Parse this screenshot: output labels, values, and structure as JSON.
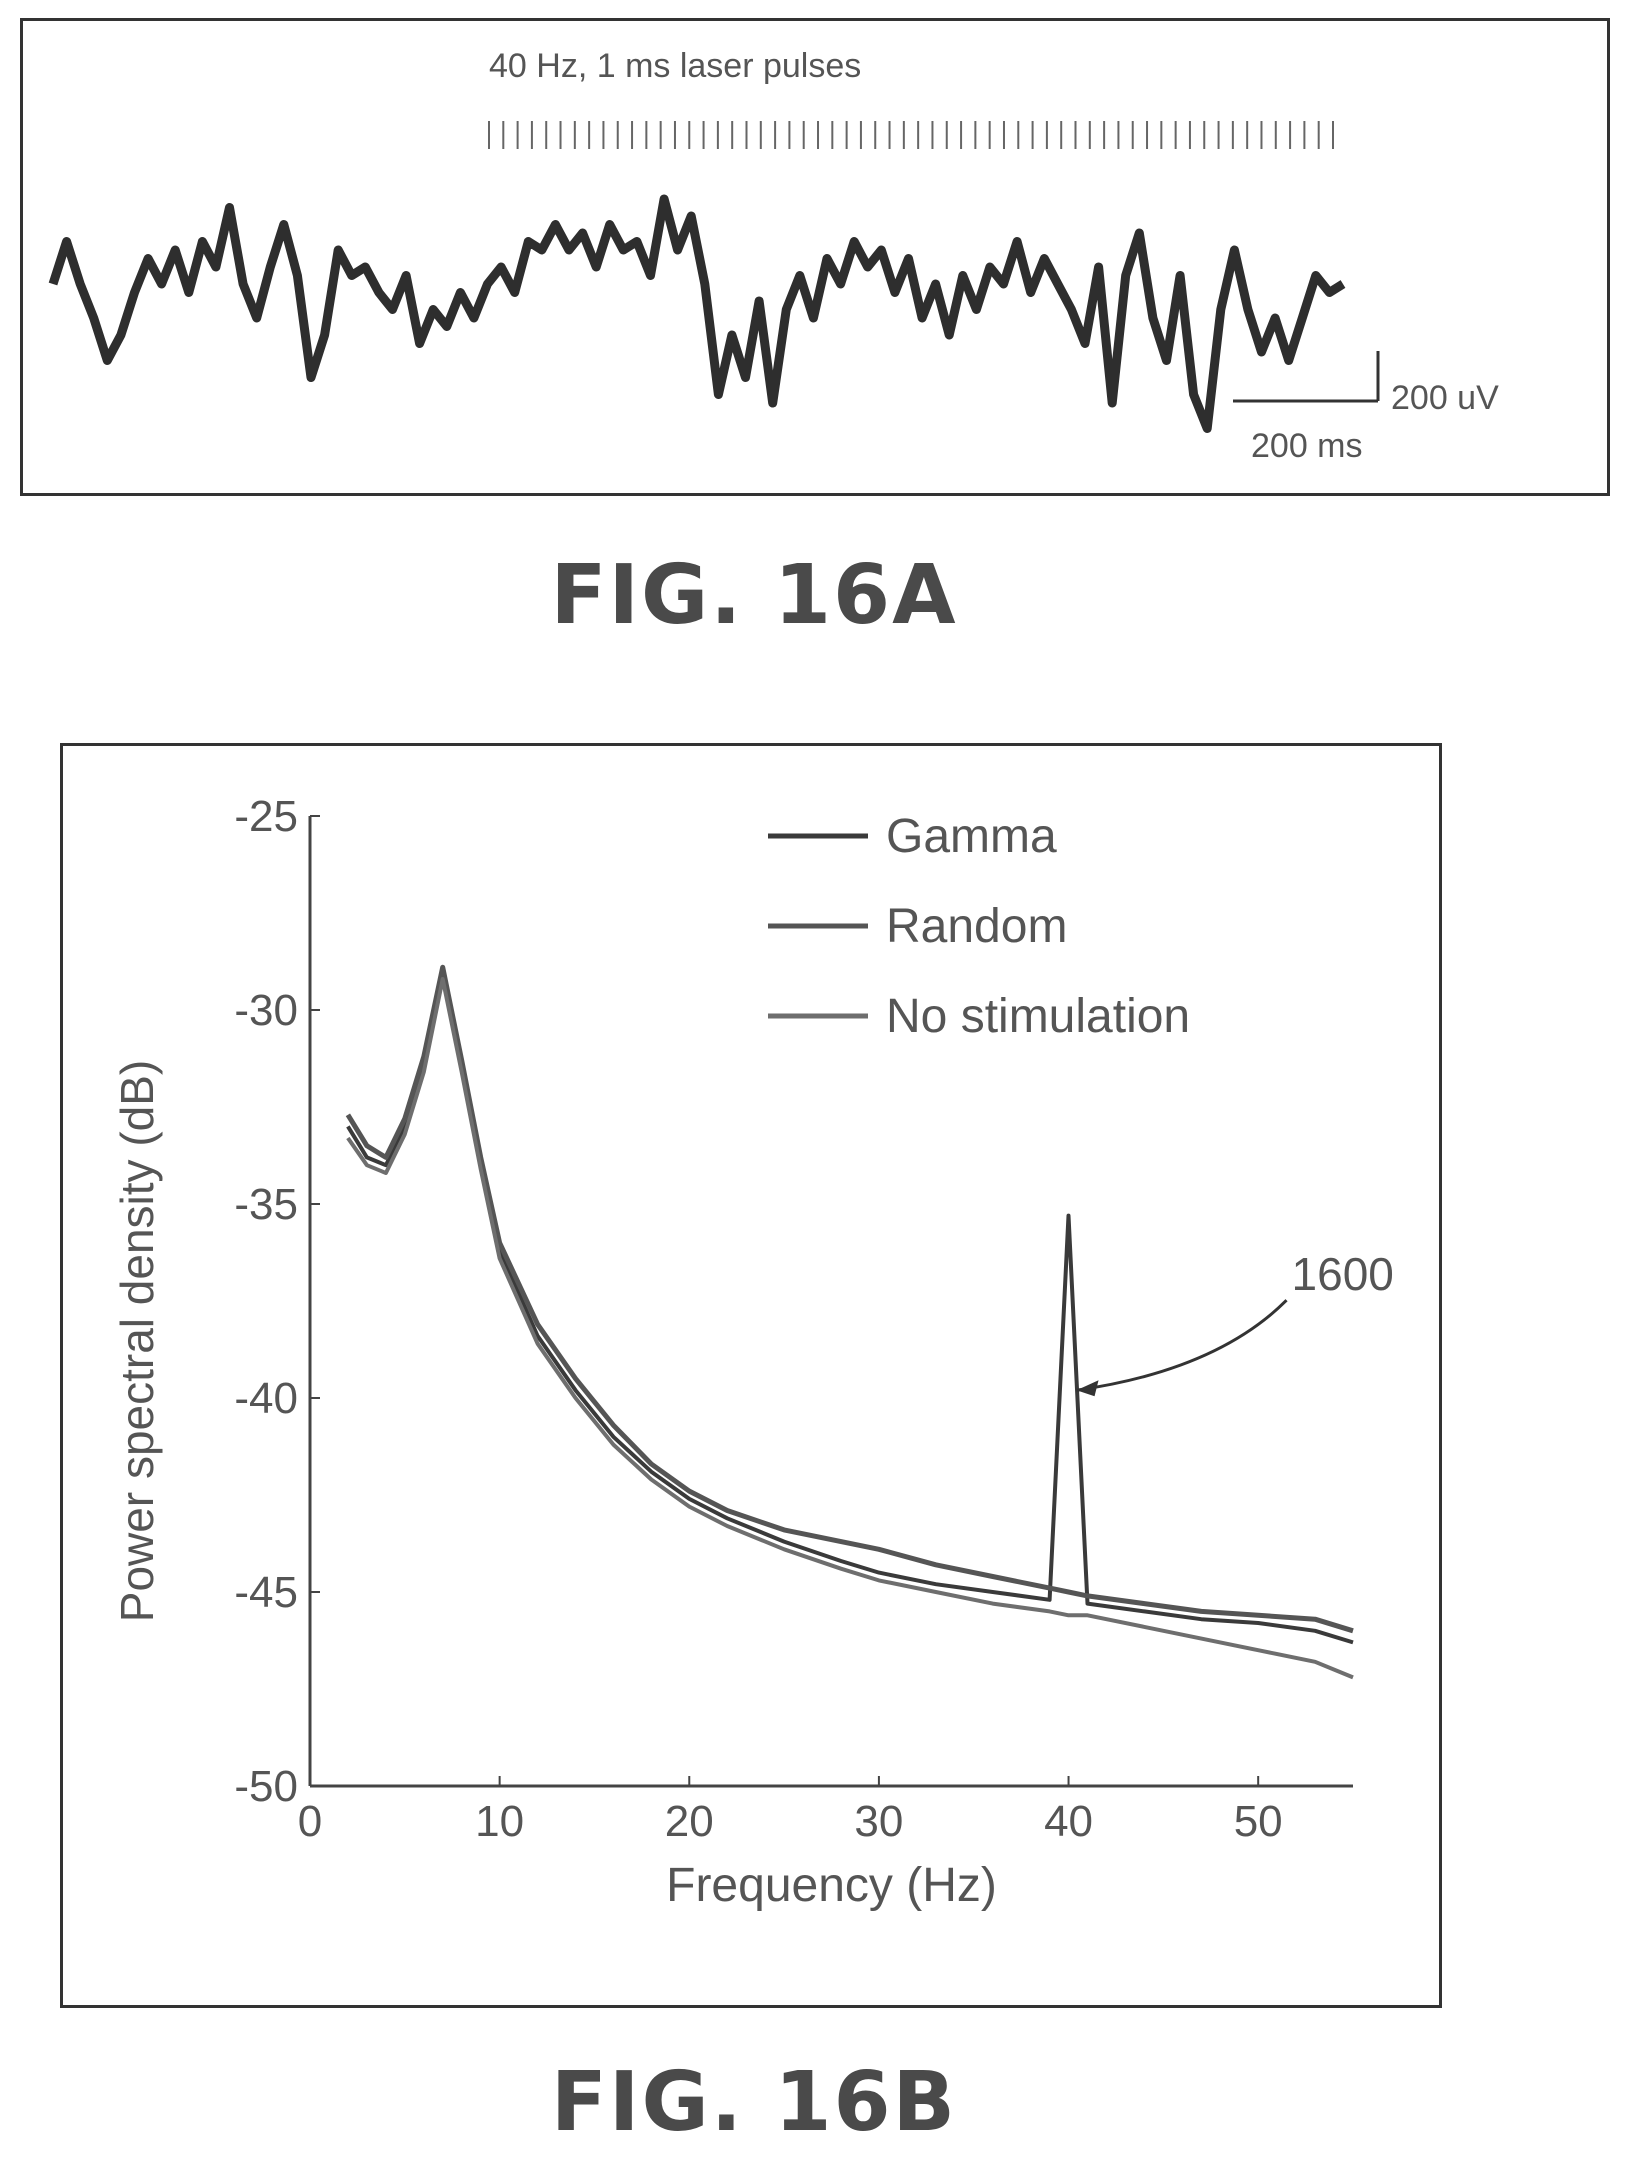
{
  "figure_a": {
    "label": "FIG. 16A",
    "stimulus_label": "40 Hz, 1 ms laser pulses",
    "scale_bar_y": "200 uV",
    "scale_bar_x": "200 ms"
  },
  "figure_b": {
    "label": "FIG. 16B",
    "annotation": "1600"
  },
  "chart_data": [
    {
      "type": "line",
      "title": "",
      "xlabel": "",
      "ylabel": "",
      "stimulus_pulses": {
        "frequency_hz": 40,
        "pulse_width_ms": 1
      },
      "scale_bar": {
        "voltage_uV": 200,
        "time_ms": 200
      },
      "series": [
        {
          "y": [
            0.1,
            0.35,
            0.1,
            -0.1,
            -0.35,
            -0.2,
            0.05,
            0.25,
            0.1,
            0.3,
            0.05,
            0.35,
            0.2,
            0.55,
            0.1,
            -0.1,
            0.2,
            0.45,
            0.15,
            -0.45,
            -0.2,
            0.3,
            0.15,
            0.2,
            0.05,
            -0.05,
            0.15,
            -0.25,
            -0.05,
            -0.15,
            0.05,
            -0.1,
            0.1,
            0.2,
            0.05,
            0.35,
            0.3,
            0.45,
            0.3,
            0.4,
            0.2,
            0.45,
            0.3,
            0.35,
            0.15,
            0.6,
            0.3,
            0.5,
            0.1,
            -0.55,
            -0.2,
            -0.45,
            0.0,
            -0.6,
            -0.05,
            0.15,
            -0.1,
            0.25,
            0.1,
            0.35,
            0.2,
            0.3,
            0.05,
            0.25,
            -0.1,
            0.1,
            -0.2,
            0.15,
            -0.05,
            0.2,
            0.1,
            0.35,
            0.05,
            0.25,
            0.1,
            -0.05,
            -0.25,
            0.2,
            -0.6,
            0.15,
            0.4,
            -0.1,
            -0.35,
            0.15,
            -0.55,
            -0.75,
            -0.05,
            0.3,
            -0.05,
            -0.3,
            -0.1,
            -0.35,
            -0.1,
            0.15,
            0.05,
            0.1
          ]
        }
      ]
    },
    {
      "type": "line",
      "title": "",
      "xlabel": "Frequency (Hz)",
      "ylabel": "Power spectral density (dB)",
      "xlim": [
        0,
        55
      ],
      "ylim": [
        -50,
        -25
      ],
      "xticks": [
        0,
        10,
        20,
        30,
        40,
        50
      ],
      "yticks": [
        -25,
        -30,
        -35,
        -40,
        -45,
        -50
      ],
      "legend": "top-right",
      "grid": false,
      "x": [
        2,
        3,
        4,
        5,
        6,
        7,
        8,
        9,
        10,
        12,
        14,
        16,
        18,
        20,
        22,
        25,
        28,
        30,
        33,
        36,
        39,
        40,
        41,
        44,
        47,
        50,
        53,
        55
      ],
      "series": [
        {
          "name": "Gamma",
          "y": [
            -33.0,
            -33.8,
            -34.0,
            -33.0,
            -31.5,
            -29.1,
            -31.5,
            -34.0,
            -36.2,
            -38.4,
            -39.8,
            -41.0,
            -41.9,
            -42.6,
            -43.1,
            -43.7,
            -44.2,
            -44.5,
            -44.8,
            -45.0,
            -45.2,
            -35.3,
            -45.3,
            -45.5,
            -45.7,
            -45.8,
            -46.0,
            -46.3
          ]
        },
        {
          "name": "Random",
          "y": [
            -32.7,
            -33.5,
            -33.8,
            -32.8,
            -31.2,
            -28.9,
            -31.3,
            -33.8,
            -36.0,
            -38.1,
            -39.5,
            -40.7,
            -41.7,
            -42.4,
            -42.9,
            -43.4,
            -43.7,
            -43.9,
            -44.3,
            -44.6,
            -44.9,
            -45.0,
            -45.1,
            -45.3,
            -45.5,
            -45.6,
            -45.7,
            -46.0
          ]
        },
        {
          "name": "No stimulation",
          "y": [
            -33.3,
            -34.0,
            -34.2,
            -33.2,
            -31.6,
            -29.2,
            -31.6,
            -34.1,
            -36.4,
            -38.6,
            -40.0,
            -41.2,
            -42.1,
            -42.8,
            -43.3,
            -43.9,
            -44.4,
            -44.7,
            -45.0,
            -45.3,
            -45.5,
            -45.6,
            -45.6,
            -45.9,
            -46.2,
            -46.5,
            -46.8,
            -47.2
          ]
        }
      ],
      "annotations": [
        {
          "text": "1600",
          "x": 40,
          "y": -39.8
        }
      ],
      "colors": {
        "Gamma": "#3a3a3a",
        "Random": "#555555",
        "No stimulation": "#6e6e6e"
      }
    }
  ]
}
